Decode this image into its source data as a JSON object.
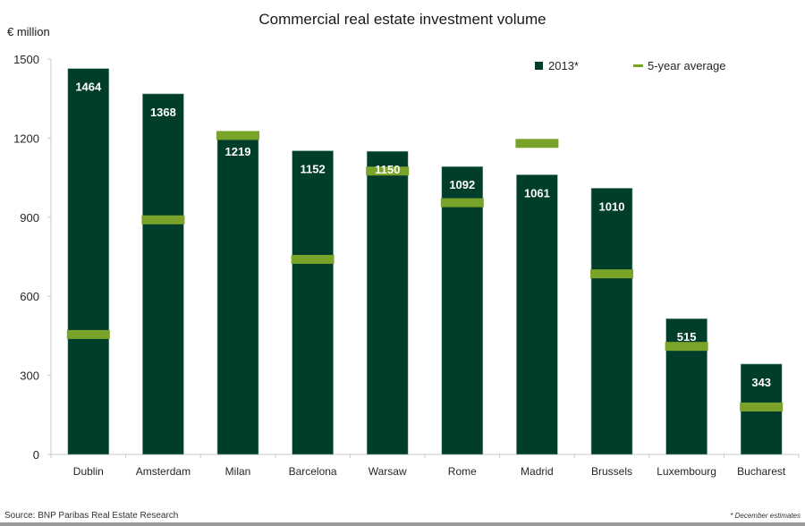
{
  "chart_data": {
    "type": "bar",
    "title": "Commercial real estate investment volume",
    "ylabel": "€ million",
    "xlabel": "",
    "ylim": [
      0,
      1500
    ],
    "yticks": [
      0,
      300,
      600,
      900,
      1200,
      1500
    ],
    "grid": false,
    "legend_position": "top-right",
    "categories": [
      "Dublin",
      "Amsterdam",
      "Milan",
      "Barcelona",
      "Warsaw",
      "Rome",
      "Madrid",
      "Brussels",
      "Luxembourg",
      "Bucharest"
    ],
    "series": [
      {
        "name": "2013*",
        "kind": "bar",
        "color": "#003d2b",
        "values": [
          1464,
          1368,
          1219,
          1152,
          1150,
          1092,
          1061,
          1010,
          515,
          343
        ],
        "labels": [
          "1464",
          "1368",
          "1219",
          "1152",
          "1150",
          "1092",
          "1061",
          "1010",
          "515",
          "343"
        ]
      },
      {
        "name": "5-year average",
        "kind": "marker",
        "color": "#7aa32a",
        "values": [
          455,
          890,
          1210,
          740,
          1075,
          955,
          1180,
          685,
          410,
          180
        ]
      }
    ],
    "source": "Source: BNP Paribas Real Estate Research",
    "footnote": "* December estimates"
  }
}
